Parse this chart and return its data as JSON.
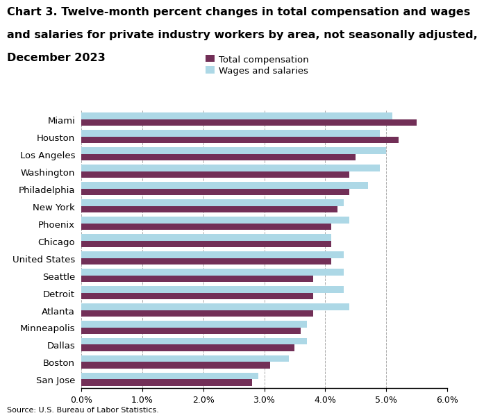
{
  "title_lines": [
    "Chart 3. Twelve-month percent changes in total compensation and wages",
    "and salaries for private industry workers by area, not seasonally adjusted,",
    "December 2023"
  ],
  "areas": [
    "Miami",
    "Houston",
    "Los Angeles",
    "Washington",
    "Philadelphia",
    "New York",
    "Phoenix",
    "Chicago",
    "United States",
    "Seattle",
    "Detroit",
    "Atlanta",
    "Minneapolis",
    "Dallas",
    "Boston",
    "San Jose"
  ],
  "total_compensation": [
    0.055,
    0.052,
    0.045,
    0.044,
    0.044,
    0.042,
    0.041,
    0.041,
    0.041,
    0.038,
    0.038,
    0.038,
    0.036,
    0.035,
    0.031,
    0.028
  ],
  "wages_and_salaries": [
    0.051,
    0.049,
    0.05,
    0.049,
    0.047,
    0.043,
    0.044,
    0.041,
    0.043,
    0.043,
    0.043,
    0.044,
    0.037,
    0.037,
    0.034,
    0.029
  ],
  "total_compensation_color": "#722F57",
  "wages_salaries_color": "#ADD8E6",
  "legend_label_comp": "Total compensation",
  "legend_label_wages": "Wages and salaries",
  "xlim_max": 0.06,
  "xticks": [
    0.0,
    0.01,
    0.02,
    0.03,
    0.04,
    0.05,
    0.06
  ],
  "source": "Source: U.S. Bureau of Labor Statistics.",
  "bg_color": "#FFFFFF",
  "grid_color": "#AAAAAA"
}
